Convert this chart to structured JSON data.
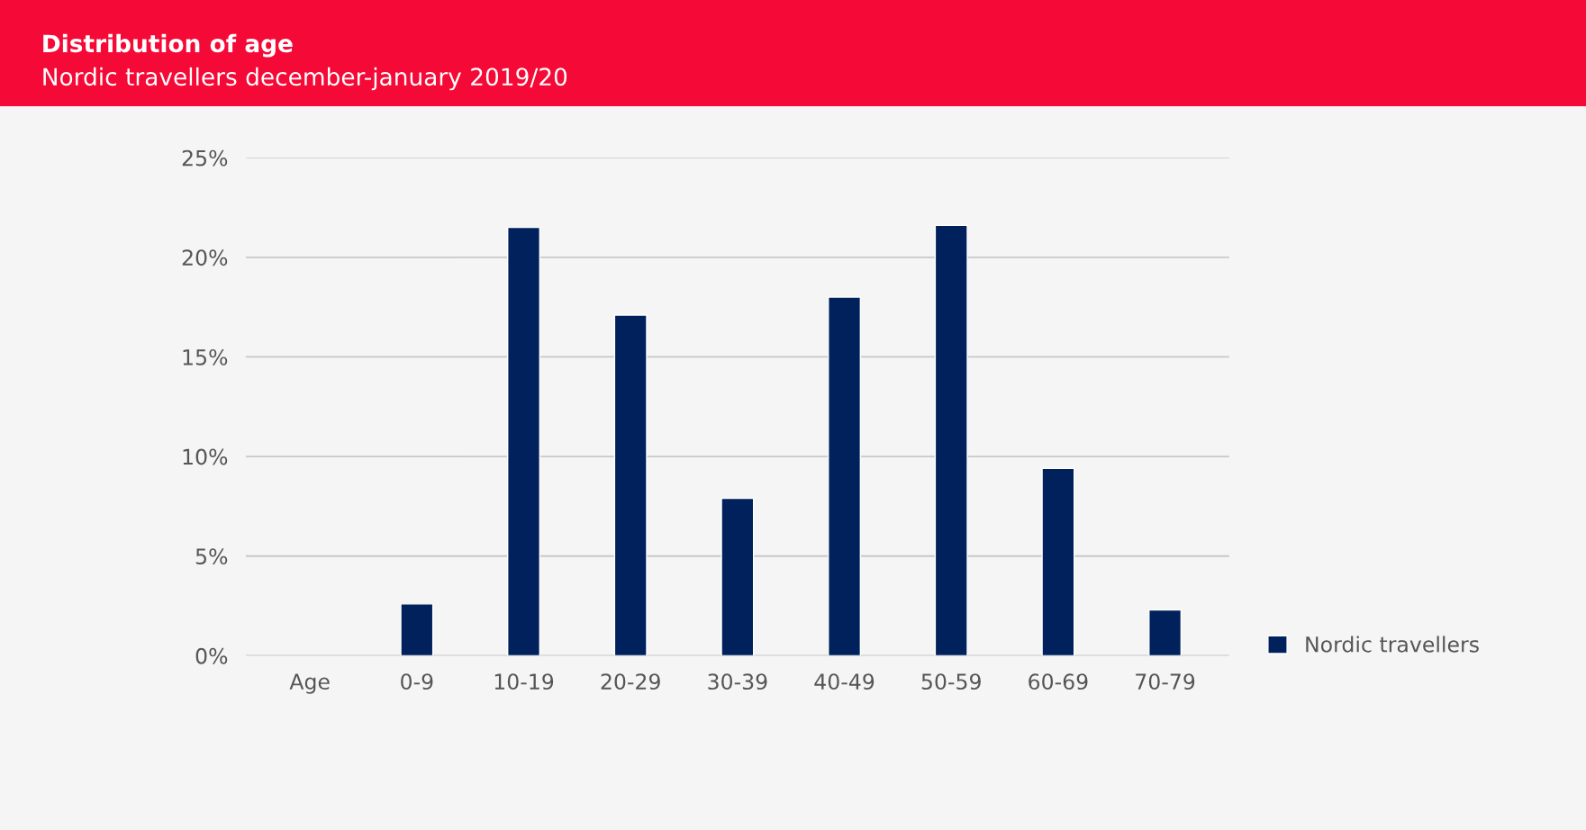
{
  "chart_data": {
    "type": "bar",
    "title": "Distribution of age",
    "subtitle": "Nordic travellers december-january 2019/20",
    "categories": [
      "Age",
      "0-9",
      "10-19",
      "20-29",
      "30-39",
      "40-49",
      "50-59",
      "60-69",
      "70-79"
    ],
    "series": [
      {
        "name": "Nordic travellers",
        "color": "#00215b",
        "values": [
          null,
          2.6,
          21.5,
          17.1,
          7.9,
          18.0,
          21.6,
          9.4,
          2.3
        ]
      }
    ],
    "ylim": [
      0,
      25
    ],
    "yticks": [
      {
        "value": 0,
        "label": "0%"
      },
      {
        "value": 5,
        "label": "5%"
      },
      {
        "value": 10,
        "label": "10%"
      },
      {
        "value": 15,
        "label": "15%"
      },
      {
        "value": 20,
        "label": "20%"
      },
      {
        "value": 25,
        "label": "25%"
      }
    ],
    "grid": "y",
    "legend": "right"
  }
}
